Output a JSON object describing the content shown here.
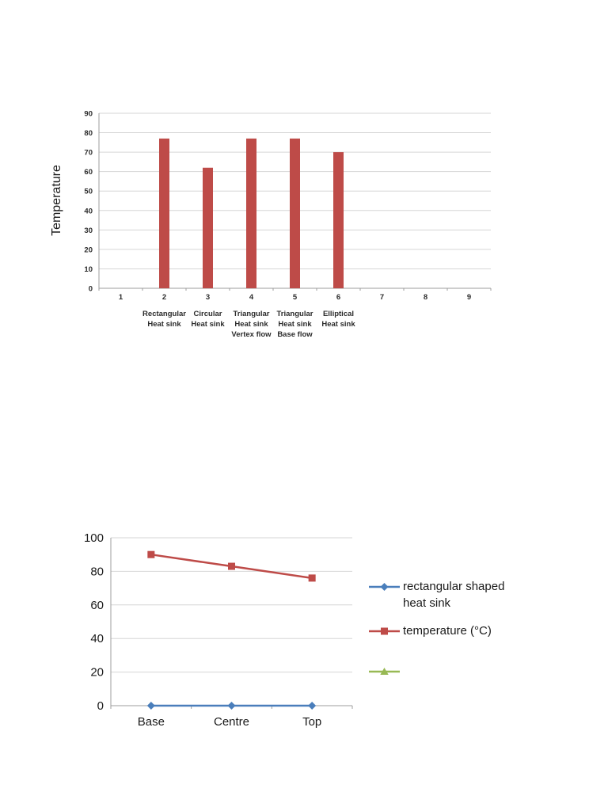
{
  "page": {
    "background": "#ffffff"
  },
  "chart_data": [
    {
      "type": "bar",
      "title": "",
      "xlabel": "",
      "ylabel": "Temperature",
      "ylim": [
        0,
        90
      ],
      "ytick_step": 10,
      "categories": [
        "1",
        "2",
        "3",
        "4",
        "5",
        "6",
        "7",
        "8",
        "9"
      ],
      "values": [
        null,
        77,
        62,
        77,
        77,
        70,
        null,
        null,
        null
      ],
      "category_labels": [
        {
          "position": 2,
          "lines": [
            "Rectangular",
            "Heat sink"
          ]
        },
        {
          "position": 3,
          "lines": [
            "Circular",
            "Heat sink"
          ]
        },
        {
          "position": 4,
          "lines": [
            "Triangular",
            "Heat sink",
            "Vertex flow"
          ]
        },
        {
          "position": 5,
          "lines": [
            "Triangular",
            "Heat sink",
            "Base flow"
          ]
        },
        {
          "position": 6,
          "lines": [
            "Elliptical",
            "Heat sink"
          ]
        }
      ],
      "bar_color": "#be4b48",
      "grid": true,
      "grid_color": "#d6d6d6",
      "axis_color": "#9e9e9e",
      "text_color": "#2b2b2b",
      "legend": "none"
    },
    {
      "type": "line",
      "title": "",
      "xlabel": "",
      "ylabel": "",
      "ylim": [
        0,
        100
      ],
      "ytick_step": 20,
      "categories": [
        "Base",
        "Centre",
        "Top"
      ],
      "series": [
        {
          "name": "rectangular shaped heat sink",
          "values": [
            0,
            0,
            0
          ],
          "color": "#4a7ebb",
          "marker": "diamond"
        },
        {
          "name": "temperature (°C)",
          "values": [
            90,
            83,
            76
          ],
          "color": "#be4b48",
          "marker": "square"
        },
        {
          "name": "",
          "values": [],
          "color": "#98b954",
          "marker": "triangle"
        }
      ],
      "grid": true,
      "grid_color": "#d6d6d6",
      "axis_color": "#9e9e9e",
      "text_color": "#1a1a1a",
      "legend_position": "right"
    }
  ]
}
